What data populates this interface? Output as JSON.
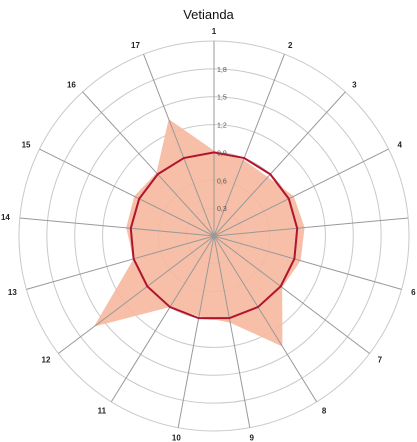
{
  "chart_data": {
    "type": "radar",
    "title": "Vetianda",
    "categories": [
      "1",
      "2",
      "3",
      "4",
      "5",
      "6",
      "7",
      "8",
      "9",
      "10",
      "11",
      "12",
      "13",
      "14",
      "15",
      "16",
      "17"
    ],
    "rlim": [
      0,
      2.1
    ],
    "ticks": [
      0.3,
      0.6,
      0.9,
      1.2,
      1.5,
      1.8
    ],
    "tick_labels": [
      "0,3",
      "0,6",
      "0,9",
      "1,2",
      "1,5",
      "1,8"
    ],
    "grid": true,
    "series": [
      {
        "kind": "area",
        "color": "#f6b89f",
        "values": [
          0.92,
          0.88,
          0.86,
          0.96,
          0.98,
          0.97,
          0.92,
          1.4,
          0.95,
          0.88,
          0.9,
          1.62,
          0.9,
          0.95,
          0.96,
          0.92,
          1.35
        ]
      },
      {
        "kind": "line",
        "color": "#b0152e",
        "values": [
          0.9,
          0.9,
          0.9,
          0.9,
          0.9,
          0.9,
          0.9,
          0.9,
          0.9,
          0.9,
          0.9,
          0.9,
          0.9,
          0.9,
          0.9,
          0.9,
          0.9
        ]
      }
    ]
  }
}
